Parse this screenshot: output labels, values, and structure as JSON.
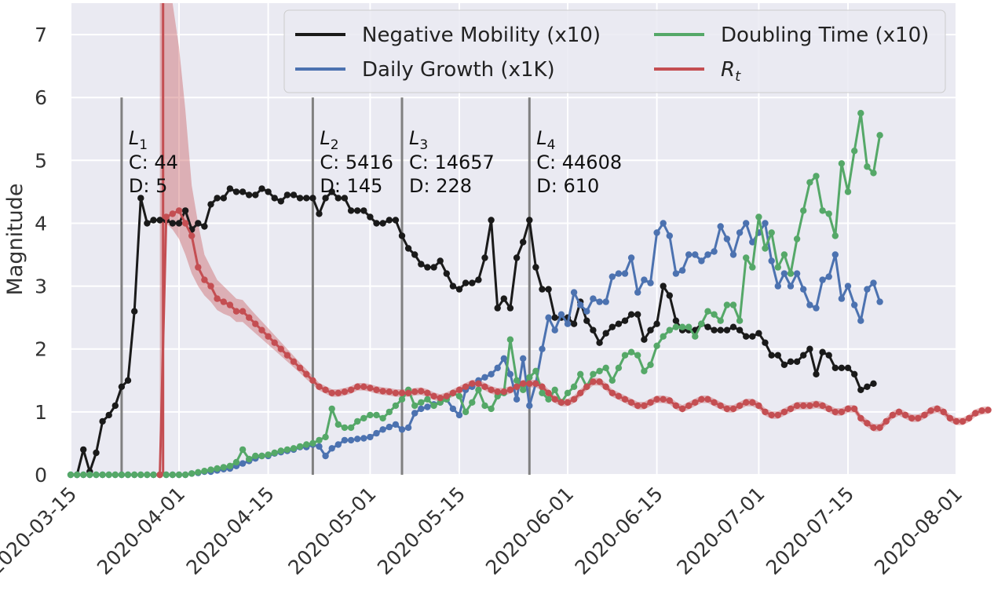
{
  "chart_data": {
    "type": "line",
    "title": "",
    "xlabel": "",
    "ylabel": "Magnitude",
    "x_axis": {
      "type": "date",
      "min": "2020-03-15",
      "max": "2020-08-01",
      "ticks": [
        "2020-03-15",
        "2020-04-01",
        "2020-04-15",
        "2020-05-01",
        "2020-05-15",
        "2020-06-01",
        "2020-06-15",
        "2020-07-01",
        "2020-07-15",
        "2020-08-01"
      ]
    },
    "y_axis": {
      "min": 0,
      "max": 7.5,
      "ticks": [
        0,
        1,
        2,
        3,
        4,
        5,
        6,
        7
      ]
    },
    "grid": true,
    "legend": {
      "placement": "top-right",
      "columns": 2
    },
    "series": [
      {
        "name": "Negative Mobility (x10)",
        "color": "#1a1a1a",
        "start": "2020-03-16",
        "values": [
          0.0,
          0.4,
          0.05,
          0.35,
          0.85,
          0.95,
          1.1,
          1.4,
          1.5,
          2.6,
          4.4,
          4.0,
          4.05,
          4.05,
          4.05,
          4.0,
          4.0,
          4.2,
          3.9,
          4.0,
          3.95,
          4.3,
          4.4,
          4.4,
          4.55,
          4.5,
          4.5,
          4.45,
          4.45,
          4.55,
          4.5,
          4.4,
          4.35,
          4.45,
          4.45,
          4.4,
          4.4,
          4.4,
          4.15,
          4.4,
          4.5,
          4.4,
          4.4,
          4.2,
          4.2,
          4.2,
          4.1,
          4.0,
          4.0,
          4.05,
          4.05,
          3.8,
          3.6,
          3.5,
          3.35,
          3.3,
          3.3,
          3.4,
          3.2,
          3.0,
          2.95,
          3.05,
          3.05,
          3.1,
          3.45,
          4.05,
          2.65,
          2.8,
          2.65,
          3.45,
          3.7,
          4.05,
          3.3,
          2.95,
          2.95,
          2.5,
          2.5,
          2.5,
          2.4,
          2.75,
          2.45,
          2.3,
          2.1,
          2.25,
          2.35,
          2.4,
          2.45,
          2.55,
          2.55,
          2.15,
          2.3,
          2.4,
          3.0,
          2.85,
          2.45,
          2.3,
          2.3,
          2.3,
          2.4,
          2.35,
          2.3,
          2.3,
          2.3,
          2.35,
          2.3,
          2.2,
          2.2,
          2.25,
          2.1,
          1.9,
          1.9,
          1.75,
          1.8,
          1.8,
          1.9,
          2.0,
          1.6,
          1.95,
          1.9,
          1.7,
          1.7,
          1.7,
          1.6,
          1.35,
          1.4,
          1.45
        ]
      },
      {
        "name": "Daily Growth (x1K)",
        "color": "#4c72b0",
        "start": "2020-03-15",
        "values": [
          0,
          0,
          0,
          0,
          0,
          0,
          0,
          0,
          0,
          0,
          0,
          0,
          0,
          0,
          0,
          0,
          0,
          0,
          0,
          0.02,
          0.03,
          0.05,
          0.05,
          0.07,
          0.09,
          0.1,
          0.14,
          0.18,
          0.22,
          0.26,
          0.3,
          0.3,
          0.34,
          0.36,
          0.38,
          0.4,
          0.44,
          0.44,
          0.48,
          0.45,
          0.3,
          0.42,
          0.48,
          0.55,
          0.55,
          0.57,
          0.58,
          0.6,
          0.66,
          0.72,
          0.76,
          0.8,
          0.72,
          0.75,
          0.98,
          1.05,
          1.08,
          1.12,
          1.15,
          1.2,
          1.05,
          0.95,
          1.35,
          1.4,
          1.5,
          1.55,
          1.6,
          1.7,
          1.85,
          1.6,
          1.2,
          1.85,
          1.1,
          1.45,
          2.0,
          2.5,
          2.3,
          2.55,
          2.4,
          2.9,
          2.7,
          2.6,
          2.8,
          2.75,
          2.75,
          3.15,
          3.2,
          3.2,
          3.45,
          2.9,
          3.1,
          3.05,
          3.85,
          4.0,
          3.8,
          3.2,
          3.25,
          3.5,
          3.5,
          3.4,
          3.5,
          3.55,
          3.95,
          3.75,
          3.5,
          3.85,
          4.0,
          3.7,
          3.85,
          4.0,
          3.4,
          3.0,
          3.2,
          3.0,
          3.2,
          2.95,
          2.7,
          2.65,
          3.1,
          3.15,
          3.5,
          2.8,
          3.0,
          2.7,
          2.45,
          2.95,
          3.05,
          2.75
        ]
      },
      {
        "name": "Doubling Time (x10)",
        "color": "#55a868",
        "start": "2020-03-15",
        "values": [
          0,
          0,
          0,
          0,
          0,
          0,
          0,
          0,
          0,
          0,
          0,
          0,
          0,
          0,
          0,
          0,
          0,
          0,
          0,
          0.02,
          0.04,
          0.06,
          0.08,
          0.1,
          0.12,
          0.14,
          0.2,
          0.4,
          0.25,
          0.3,
          0.3,
          0.32,
          0.35,
          0.38,
          0.4,
          0.42,
          0.45,
          0.48,
          0.5,
          0.55,
          0.6,
          1.05,
          0.8,
          0.75,
          0.75,
          0.85,
          0.9,
          0.95,
          0.95,
          0.9,
          1.0,
          1.1,
          1.2,
          1.35,
          1.1,
          1.15,
          1.2,
          1.1,
          1.15,
          1.2,
          1.3,
          1.25,
          1.0,
          1.15,
          1.35,
          1.1,
          1.05,
          1.25,
          1.3,
          2.15,
          1.5,
          1.35,
          1.55,
          1.65,
          1.3,
          1.2,
          1.35,
          1.15,
          1.3,
          1.4,
          1.6,
          1.4,
          1.6,
          1.65,
          1.7,
          1.5,
          1.7,
          1.9,
          1.95,
          1.9,
          1.65,
          1.75,
          2.05,
          2.2,
          2.3,
          2.35,
          2.35,
          2.35,
          2.2,
          2.4,
          2.6,
          2.55,
          2.45,
          2.7,
          2.7,
          2.45,
          3.45,
          3.3,
          4.1,
          3.6,
          3.85,
          3.3,
          3.5,
          3.2,
          3.75,
          4.2,
          4.65,
          4.75,
          4.2,
          4.15,
          3.8,
          4.95,
          4.5,
          5.15,
          5.75,
          4.9,
          4.8,
          5.4
        ]
      },
      {
        "name": "R_t",
        "color": "#c44e52",
        "start": "2020-03-29",
        "values": [
          0.0,
          4.1,
          4.15,
          4.2,
          4.0,
          3.8,
          3.3,
          3.1,
          3.0,
          2.8,
          2.75,
          2.7,
          2.6,
          2.6,
          2.5,
          2.4,
          2.3,
          2.2,
          2.1,
          2.0,
          1.9,
          1.8,
          1.7,
          1.6,
          1.5,
          1.4,
          1.35,
          1.3,
          1.3,
          1.32,
          1.35,
          1.4,
          1.4,
          1.38,
          1.35,
          1.33,
          1.32,
          1.3,
          1.3,
          1.3,
          1.32,
          1.33,
          1.3,
          1.25,
          1.22,
          1.25,
          1.3,
          1.35,
          1.4,
          1.45,
          1.45,
          1.4,
          1.35,
          1.32,
          1.32,
          1.35,
          1.4,
          1.45,
          1.45,
          1.45,
          1.4,
          1.3,
          1.2,
          1.15,
          1.15,
          1.2,
          1.3,
          1.4,
          1.48,
          1.48,
          1.4,
          1.3,
          1.25,
          1.2,
          1.15,
          1.1,
          1.1,
          1.15,
          1.2,
          1.2,
          1.18,
          1.1,
          1.05,
          1.1,
          1.15,
          1.2,
          1.2,
          1.15,
          1.1,
          1.05,
          1.05,
          1.1,
          1.15,
          1.15,
          1.1,
          1.0,
          0.95,
          0.95,
          1.0,
          1.05,
          1.1,
          1.1,
          1.1,
          1.12,
          1.1,
          1.05,
          1.0,
          1.0,
          1.05,
          1.05,
          0.9,
          0.82,
          0.75,
          0.75,
          0.85,
          0.95,
          1.0,
          0.95,
          0.9,
          0.9,
          0.95,
          1.02,
          1.05,
          1.0,
          0.9,
          0.85,
          0.85,
          0.9,
          0.98,
          1.02,
          1.03
        ],
        "band_start": "2020-03-29",
        "band_lower": [
          0.0,
          4.0,
          3.9,
          3.75,
          3.5,
          3.2,
          3.0,
          2.85,
          2.75,
          2.62,
          2.56,
          2.52,
          2.43,
          2.43,
          2.34,
          2.25,
          2.16,
          2.07,
          1.98,
          1.89,
          1.8,
          1.71,
          1.62,
          1.52,
          1.43,
          1.34,
          1.29,
          1.24,
          1.24,
          1.26,
          1.29,
          1.34,
          1.34,
          1.32,
          1.29,
          1.27,
          1.26,
          1.24,
          1.24,
          1.24,
          1.26,
          1.27,
          1.24,
          1.19,
          1.16,
          1.19,
          1.24,
          1.29,
          1.34,
          1.39,
          1.39,
          1.34,
          1.29,
          1.26,
          1.26,
          1.29,
          1.34,
          1.39,
          1.39,
          1.39,
          1.34,
          1.24,
          1.14,
          1.09,
          1.09,
          1.14,
          1.24,
          1.34,
          1.42,
          1.42,
          1.34,
          1.24,
          1.19,
          1.14,
          1.09,
          1.04,
          1.04,
          1.09,
          1.14,
          1.14,
          1.12,
          1.04,
          0.99,
          1.04,
          1.09,
          1.14,
          1.14,
          1.09,
          1.04,
          0.99,
          0.99,
          1.04,
          1.09,
          1.09,
          1.04,
          0.94,
          0.89,
          0.89,
          0.94,
          0.99,
          1.04,
          1.04,
          1.04,
          1.06,
          1.04,
          0.99,
          0.94,
          0.94,
          0.99,
          0.99,
          0.84,
          0.76,
          0.69,
          0.69,
          0.79,
          0.89,
          0.94,
          0.89,
          0.84,
          0.84,
          0.89,
          0.96,
          0.99,
          0.94,
          0.84,
          0.79,
          0.79,
          0.84,
          0.92,
          0.96,
          0.97
        ],
        "band_upper": [
          7.5,
          7.5,
          7.5,
          6.8,
          5.8,
          4.6,
          4.0,
          3.5,
          3.3,
          3.1,
          3.0,
          2.9,
          2.8,
          2.78,
          2.66,
          2.55,
          2.44,
          2.33,
          2.22,
          2.11,
          2.0,
          1.89,
          1.78,
          1.68,
          1.57,
          1.46,
          1.41,
          1.36,
          1.36,
          1.38,
          1.41,
          1.46,
          1.46,
          1.44,
          1.41,
          1.39,
          1.38,
          1.36,
          1.36,
          1.36,
          1.38,
          1.39,
          1.36,
          1.31,
          1.28,
          1.31,
          1.36,
          1.41,
          1.46,
          1.51,
          1.51,
          1.46,
          1.41,
          1.38,
          1.38,
          1.41,
          1.46,
          1.51,
          1.51,
          1.51,
          1.46,
          1.36,
          1.26,
          1.21,
          1.21,
          1.26,
          1.36,
          1.46,
          1.54,
          1.54,
          1.46,
          1.36,
          1.31,
          1.26,
          1.21,
          1.16,
          1.16,
          1.21,
          1.26,
          1.26,
          1.24,
          1.16,
          1.11,
          1.16,
          1.21,
          1.26,
          1.26,
          1.21,
          1.16,
          1.11,
          1.11,
          1.16,
          1.21,
          1.21,
          1.16,
          1.06,
          1.01,
          1.01,
          1.06,
          1.11,
          1.16,
          1.16,
          1.16,
          1.18,
          1.16,
          1.11,
          1.06,
          1.06,
          1.11,
          1.11,
          0.96,
          0.88,
          0.81,
          0.81,
          0.91,
          1.01,
          1.06,
          1.01,
          0.96,
          0.96,
          1.01,
          1.08,
          1.11,
          1.06,
          0.96,
          0.91,
          0.91,
          0.96,
          1.04,
          1.08,
          1.09
        ],
        "spike": {
          "date": "2020-03-30",
          "to": 7.5
        }
      }
    ],
    "annotations": [
      {
        "date": "2020-03-23",
        "label": "L1",
        "label_base": "L",
        "label_sub": "1",
        "c": "C: 44",
        "d": "D: 5"
      },
      {
        "date": "2020-04-22",
        "label": "L2",
        "label_base": "L",
        "label_sub": "2",
        "c": "C: 5416",
        "d": "D: 145"
      },
      {
        "date": "2020-05-06",
        "label": "L3",
        "label_base": "L",
        "label_sub": "3",
        "c": "C: 14657",
        "d": "D: 228"
      },
      {
        "date": "2020-05-26",
        "label": "L4",
        "label_base": "L",
        "label_sub": "4",
        "c": "C: 44608",
        "d": "D: 610"
      }
    ]
  },
  "legend_labels": {
    "neg_mobility": "Negative Mobility (x10)",
    "daily_growth": "Daily Growth (x1K)",
    "doubling_time": "Doubling Time (x10)",
    "rt_base": "R",
    "rt_sub": "t"
  },
  "colors": {
    "plot_bg": "#eaeaf2",
    "grid": "#ffffff",
    "vline": "#808080"
  }
}
